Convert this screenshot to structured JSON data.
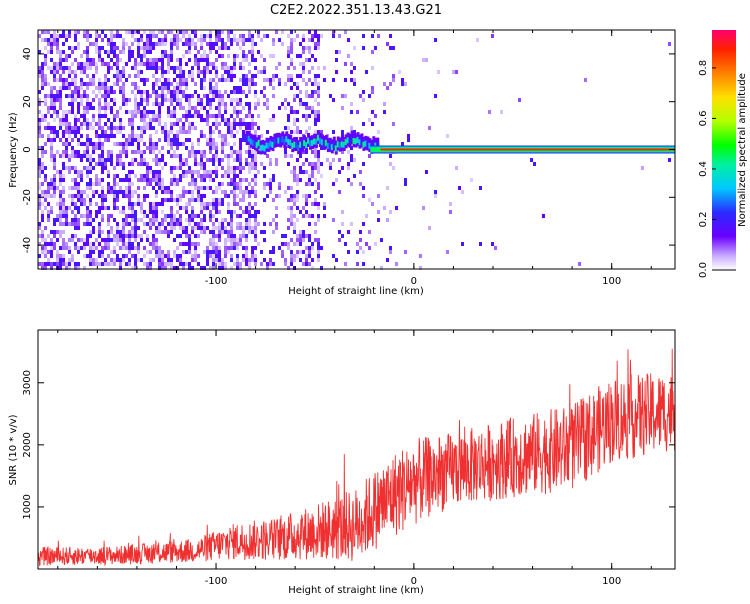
{
  "title": "C2E2.2022.351.13.43.G21",
  "chart_data": [
    {
      "type": "heatmap",
      "xlabel": "Height of straight line (km)",
      "ylabel": "Frequency (Hz)",
      "xlim": [
        -190,
        132
      ],
      "ylim": [
        -50,
        50
      ],
      "xticks": [
        -100,
        0,
        100
      ],
      "yticks": [
        -40,
        -20,
        0,
        20,
        40
      ],
      "colorbar": {
        "label": "Normalized spectral amplitude",
        "range": [
          0,
          0.95
        ],
        "ticks": [
          0.0,
          0.2,
          0.4,
          0.6,
          0.8
        ]
      },
      "features": [
        {
          "description_source": "visual",
          "x_range": [
            -190,
            -50
          ],
          "y_range": [
            -50,
            50
          ],
          "level": 0.05
        },
        {
          "description_source": "visual",
          "x_range": [
            -85,
            -20
          ],
          "y_range": [
            -3,
            5
          ],
          "level": 0.3
        },
        {
          "description_source": "visual",
          "x_range": [
            -20,
            132
          ],
          "y_range": [
            -0.5,
            0.5
          ],
          "level": 0.9
        }
      ]
    },
    {
      "type": "line",
      "xlabel": "Height of straight line (km)",
      "ylabel": "SNR (10 * v/v)",
      "xlim": [
        -190,
        132
      ],
      "ylim": [
        0,
        3850
      ],
      "xticks": [
        -100,
        0,
        100
      ],
      "yticks": [
        1000,
        2000,
        3000
      ],
      "color": "#f03030",
      "trend": {
        "x": [
          -190,
          -150,
          -110,
          -90,
          -70,
          -50,
          -30,
          -10,
          0,
          20,
          50,
          80,
          100,
          132
        ],
        "y": [
          200,
          220,
          300,
          450,
          480,
          600,
          700,
          1200,
          1400,
          1600,
          1800,
          1950,
          2400,
          2550
        ],
        "spread": [
          150,
          150,
          200,
          300,
          350,
          450,
          600,
          700,
          700,
          600,
          650,
          700,
          700,
          650
        ]
      }
    }
  ]
}
